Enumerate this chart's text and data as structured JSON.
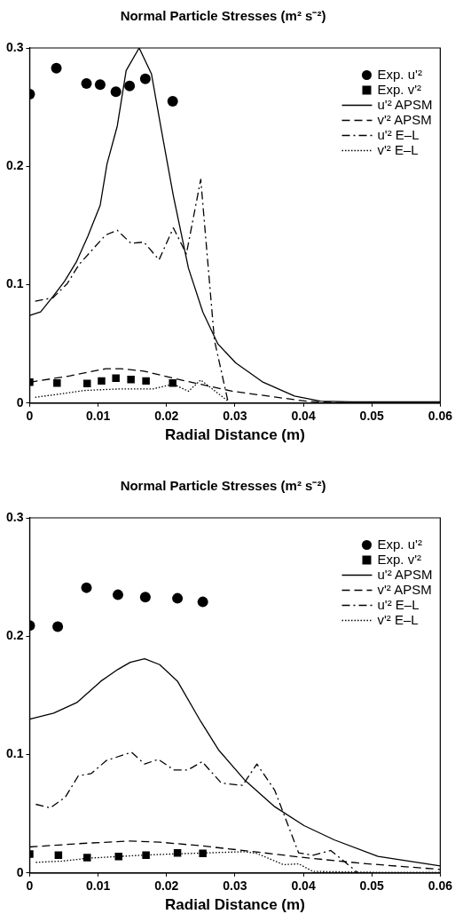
{
  "chart_data": [
    {
      "type": "line",
      "title": "Normal Particle Stresses (m² s⁻²)",
      "xlabel": "Radial Distance (m)",
      "xlim": [
        0,
        0.06
      ],
      "xticks": [
        0,
        0.01,
        0.02,
        0.03,
        0.04,
        0.05,
        0.06
      ],
      "ylim": [
        0,
        0.3
      ],
      "yticks": [
        0,
        0.1,
        0.2,
        0.3
      ],
      "grid": false,
      "legend": "top right",
      "series": [
        {
          "name": "Exp. u'²",
          "type": "scatter",
          "marker": "circle",
          "color": "#000000",
          "x": [
            0,
            0.0039,
            0.0083,
            0.0103,
            0.0126,
            0.0146,
            0.0169,
            0.0209
          ],
          "values": [
            0.261,
            0.283,
            0.27,
            0.269,
            0.263,
            0.268,
            0.274,
            0.255
          ]
        },
        {
          "name": "Exp. v'²",
          "type": "scatter",
          "marker": "square",
          "color": "#000000",
          "x": [
            0,
            0.004,
            0.0084,
            0.0105,
            0.0126,
            0.0148,
            0.017,
            0.0209
          ],
          "values": [
            0.0176,
            0.017,
            0.0165,
            0.0187,
            0.021,
            0.02,
            0.0187,
            0.017
          ]
        },
        {
          "name": "u'² APSM",
          "line_style": "solid",
          "color": "#000000",
          "x": [
            0,
            0.0016,
            0.0034,
            0.0051,
            0.0068,
            0.0085,
            0.0103,
            0.0113,
            0.0128,
            0.0141,
            0.016,
            0.0178,
            0.0193,
            0.021,
            0.0232,
            0.0253,
            0.0275,
            0.0301,
            0.034,
            0.0387,
            0.0425,
            0.047,
            0.06
          ],
          "values": [
            0.074,
            0.077,
            0.09,
            0.103,
            0.119,
            0.141,
            0.167,
            0.202,
            0.234,
            0.281,
            0.3,
            0.278,
            0.229,
            0.175,
            0.114,
            0.077,
            0.05,
            0.034,
            0.018,
            0.006,
            0.0016,
            0.001,
            0.001
          ]
        },
        {
          "name": "v'² APSM",
          "line_style": "dashed",
          "color": "#000000",
          "x": [
            0,
            0.0059,
            0.0111,
            0.0133,
            0.0167,
            0.021,
            0.0253,
            0.0296,
            0.036,
            0.0404,
            0.0447,
            0.06
          ],
          "values": [
            0.0176,
            0.023,
            0.029,
            0.029,
            0.027,
            0.021,
            0.0155,
            0.01,
            0.005,
            0.0016,
            0.0005,
            0.0003
          ]
        },
        {
          "name": "u'² E–L",
          "line_style": "dashdot",
          "color": "#000000",
          "x": [
            0.0008,
            0.0034,
            0.0055,
            0.0072,
            0.0111,
            0.0128,
            0.0148,
            0.0167,
            0.0189,
            0.021,
            0.0229,
            0.025,
            0.027,
            0.029
          ],
          "values": [
            0.086,
            0.089,
            0.101,
            0.117,
            0.142,
            0.146,
            0.135,
            0.136,
            0.121,
            0.148,
            0.126,
            0.189,
            0.053,
            0.001
          ]
        },
        {
          "name": "v'² E–L",
          "line_style": "dotted",
          "color": "#000000",
          "x": [
            0.0008,
            0.0081,
            0.0133,
            0.018,
            0.021,
            0.0232,
            0.025,
            0.029
          ],
          "values": [
            0.0048,
            0.0107,
            0.012,
            0.012,
            0.016,
            0.01,
            0.0195,
            0.0016
          ]
        }
      ]
    },
    {
      "type": "line",
      "title": "Normal Particle Stresses (m² s⁻²)",
      "xlabel": "Radial Distance (m)",
      "xlim": [
        0,
        0.06
      ],
      "xticks": [
        0,
        0.01,
        0.02,
        0.03,
        0.04,
        0.05,
        0.06
      ],
      "ylim": [
        0,
        0.3
      ],
      "yticks": [
        0,
        0.1,
        0.2,
        0.3
      ],
      "grid": false,
      "legend": "top right",
      "series": [
        {
          "name": "Exp. u'²",
          "type": "scatter",
          "marker": "circle",
          "color": "#000000",
          "x": [
            0,
            0.0041,
            0.0083,
            0.0129,
            0.0169,
            0.0216,
            0.0253
          ],
          "values": [
            0.209,
            0.208,
            0.241,
            0.235,
            0.233,
            0.232,
            0.229
          ]
        },
        {
          "name": "Exp. v'²",
          "type": "scatter",
          "marker": "square",
          "color": "#000000",
          "x": [
            0,
            0.0042,
            0.0084,
            0.013,
            0.017,
            0.0216,
            0.0253
          ],
          "values": [
            0.016,
            0.015,
            0.013,
            0.014,
            0.015,
            0.017,
            0.0165
          ]
        },
        {
          "name": "u'² APSM",
          "line_style": "solid",
          "color": "#000000",
          "x": [
            0,
            0.0035,
            0.0069,
            0.0104,
            0.0129,
            0.0147,
            0.0168,
            0.019,
            0.0216,
            0.025,
            0.0276,
            0.0315,
            0.0358,
            0.0401,
            0.0445,
            0.0509,
            0.06
          ],
          "values": [
            0.13,
            0.135,
            0.144,
            0.162,
            0.172,
            0.178,
            0.181,
            0.176,
            0.162,
            0.128,
            0.104,
            0.078,
            0.056,
            0.04,
            0.028,
            0.014,
            0.006
          ]
        },
        {
          "name": "v'² APSM",
          "line_style": "dashed",
          "color": "#000000",
          "x": [
            0,
            0.0078,
            0.0147,
            0.019,
            0.025,
            0.0328,
            0.0401,
            0.0488,
            0.06
          ],
          "values": [
            0.022,
            0.025,
            0.027,
            0.026,
            0.023,
            0.018,
            0.013,
            0.008,
            0.003
          ]
        },
        {
          "name": "u'² E–L",
          "line_style": "dashdot",
          "color": "#000000",
          "x": [
            0.0009,
            0.003,
            0.0052,
            0.0071,
            0.009,
            0.0112,
            0.0149,
            0.0168,
            0.0188,
            0.0211,
            0.0231,
            0.0252,
            0.028,
            0.0311,
            0.0332,
            0.0358,
            0.0393,
            0.0414,
            0.044,
            0.0479
          ],
          "values": [
            0.058,
            0.055,
            0.064,
            0.082,
            0.084,
            0.095,
            0.102,
            0.092,
            0.096,
            0.087,
            0.087,
            0.094,
            0.076,
            0.074,
            0.092,
            0.07,
            0.017,
            0.015,
            0.019,
            0.0005
          ]
        },
        {
          "name": "v'² E–L",
          "line_style": "dotted",
          "color": "#000000",
          "x": [
            0.0009,
            0.0047,
            0.0086,
            0.0164,
            0.0207,
            0.0315,
            0.0332,
            0.0371,
            0.0393,
            0.0414,
            0.0509,
            0.06
          ],
          "values": [
            0.009,
            0.01,
            0.0125,
            0.015,
            0.016,
            0.018,
            0.0165,
            0.007,
            0.0077,
            0.0013,
            0.0005,
            0.0005
          ]
        }
      ]
    }
  ]
}
